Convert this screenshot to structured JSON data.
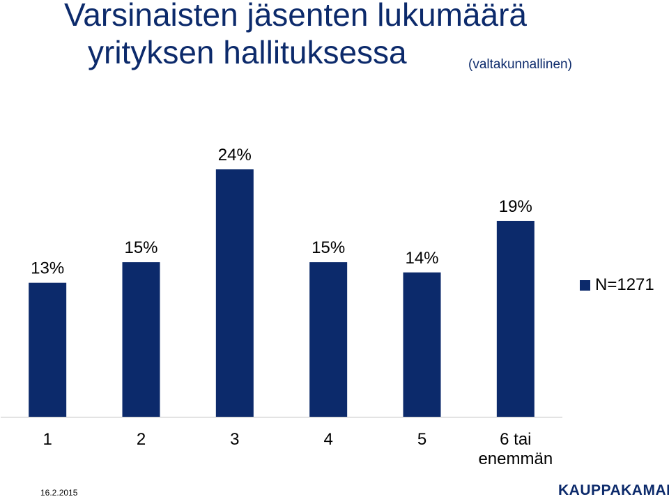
{
  "title": {
    "line1": "Varsinaisten jäsenten lukumäärä",
    "line2": "yrityksen hallituksessa",
    "subtitle": "(valtakunnallinen)"
  },
  "colors": {
    "bar": "#0c2a6b",
    "title": "#0c2a6b",
    "axis": "#bfbfbf"
  },
  "chart_data": {
    "type": "bar",
    "categories": [
      "1",
      "2",
      "3",
      "4",
      "5",
      "6 tai enemmän"
    ],
    "series": [
      {
        "name": "N=1271",
        "values": [
          13,
          15,
          24,
          15,
          14,
          19
        ],
        "labels": [
          "13%",
          "15%",
          "24%",
          "15%",
          "14%",
          "19%"
        ]
      }
    ],
    "unit": "%",
    "ylim": [
      0,
      24
    ],
    "grid": false,
    "legend": "right"
  },
  "footer": {
    "date": "16.2.2015",
    "logo": "KAUPPAKAMARI"
  }
}
